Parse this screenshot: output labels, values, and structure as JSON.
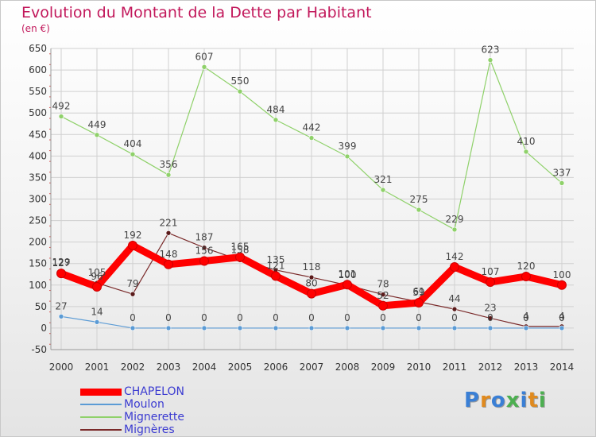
{
  "title": "Evolution du Montant de la Dette par Habitant",
  "subtitle": "(en €)",
  "logo_text": "Proxiti",
  "chart_data": {
    "type": "line",
    "title": "Evolution du Montant de la Dette par Habitant",
    "subtitle": "(en €)",
    "xlabel": "",
    "ylabel": "",
    "x": [
      2000,
      2001,
      2002,
      2003,
      2004,
      2005,
      2006,
      2007,
      2008,
      2009,
      2010,
      2011,
      2012,
      2013,
      2014
    ],
    "x_tick_labels": [
      "2000",
      "2001",
      "2002",
      "2003",
      "2004",
      "2005",
      "2006",
      "2007",
      "2008",
      "2009",
      "2010",
      "2011",
      "2012",
      "2013",
      "2014"
    ],
    "ylim": [
      -50,
      650
    ],
    "y_ticks": [
      -50,
      0,
      50,
      100,
      150,
      200,
      250,
      300,
      350,
      400,
      450,
      500,
      550,
      600,
      650
    ],
    "y_tick_labels": [
      "-50",
      "0",
      "50",
      "100",
      "150",
      "200",
      "250",
      "300",
      "350",
      "400",
      "450",
      "500",
      "550",
      "600",
      "650"
    ],
    "grid": true,
    "legend_position": "bottom-left",
    "series": [
      {
        "name": "CHAPELON",
        "color": "#ff0000",
        "values": [
          127,
          96,
          192,
          148,
          156,
          165,
          121,
          80,
          101,
          52,
          59,
          142,
          107,
          120,
          100
        ],
        "labels": [
          "127",
          "96",
          "192",
          "148",
          "156",
          "165",
          "121",
          "80",
          "101",
          "52",
          "59",
          "142",
          "107",
          "120",
          "100"
        ]
      },
      {
        "name": "Moulon",
        "color": "#5b9bd5",
        "values": [
          27,
          14,
          0,
          0,
          0,
          0,
          0,
          0,
          0,
          0,
          0,
          0,
          0,
          0,
          0
        ],
        "labels": [
          "27",
          "14",
          "0",
          "0",
          "0",
          "0",
          "0",
          "0",
          "0",
          "0",
          "0",
          "0",
          "0",
          "0",
          "0"
        ]
      },
      {
        "name": "Mignerette",
        "color": "#8fd16a",
        "values": [
          492,
          449,
          404,
          356,
          607,
          550,
          484,
          442,
          399,
          321,
          275,
          229,
          623,
          410,
          337
        ],
        "labels": [
          "492",
          "449",
          "404",
          "356",
          "607",
          "550",
          "484",
          "442",
          "399",
          "321",
          "275",
          "229",
          "623",
          "410",
          "337"
        ]
      },
      {
        "name": "Mignères",
        "color": "#7a2a2a",
        "values": [
          129,
          105,
          79,
          221,
          187,
          158,
          135,
          118,
          100,
          78,
          61,
          44,
          23,
          4,
          4
        ],
        "labels": [
          "129",
          "105",
          "79",
          "221",
          "187",
          "158",
          "135",
          "118",
          "100",
          "78",
          "61",
          "44",
          "23",
          "4",
          "4"
        ]
      }
    ]
  }
}
